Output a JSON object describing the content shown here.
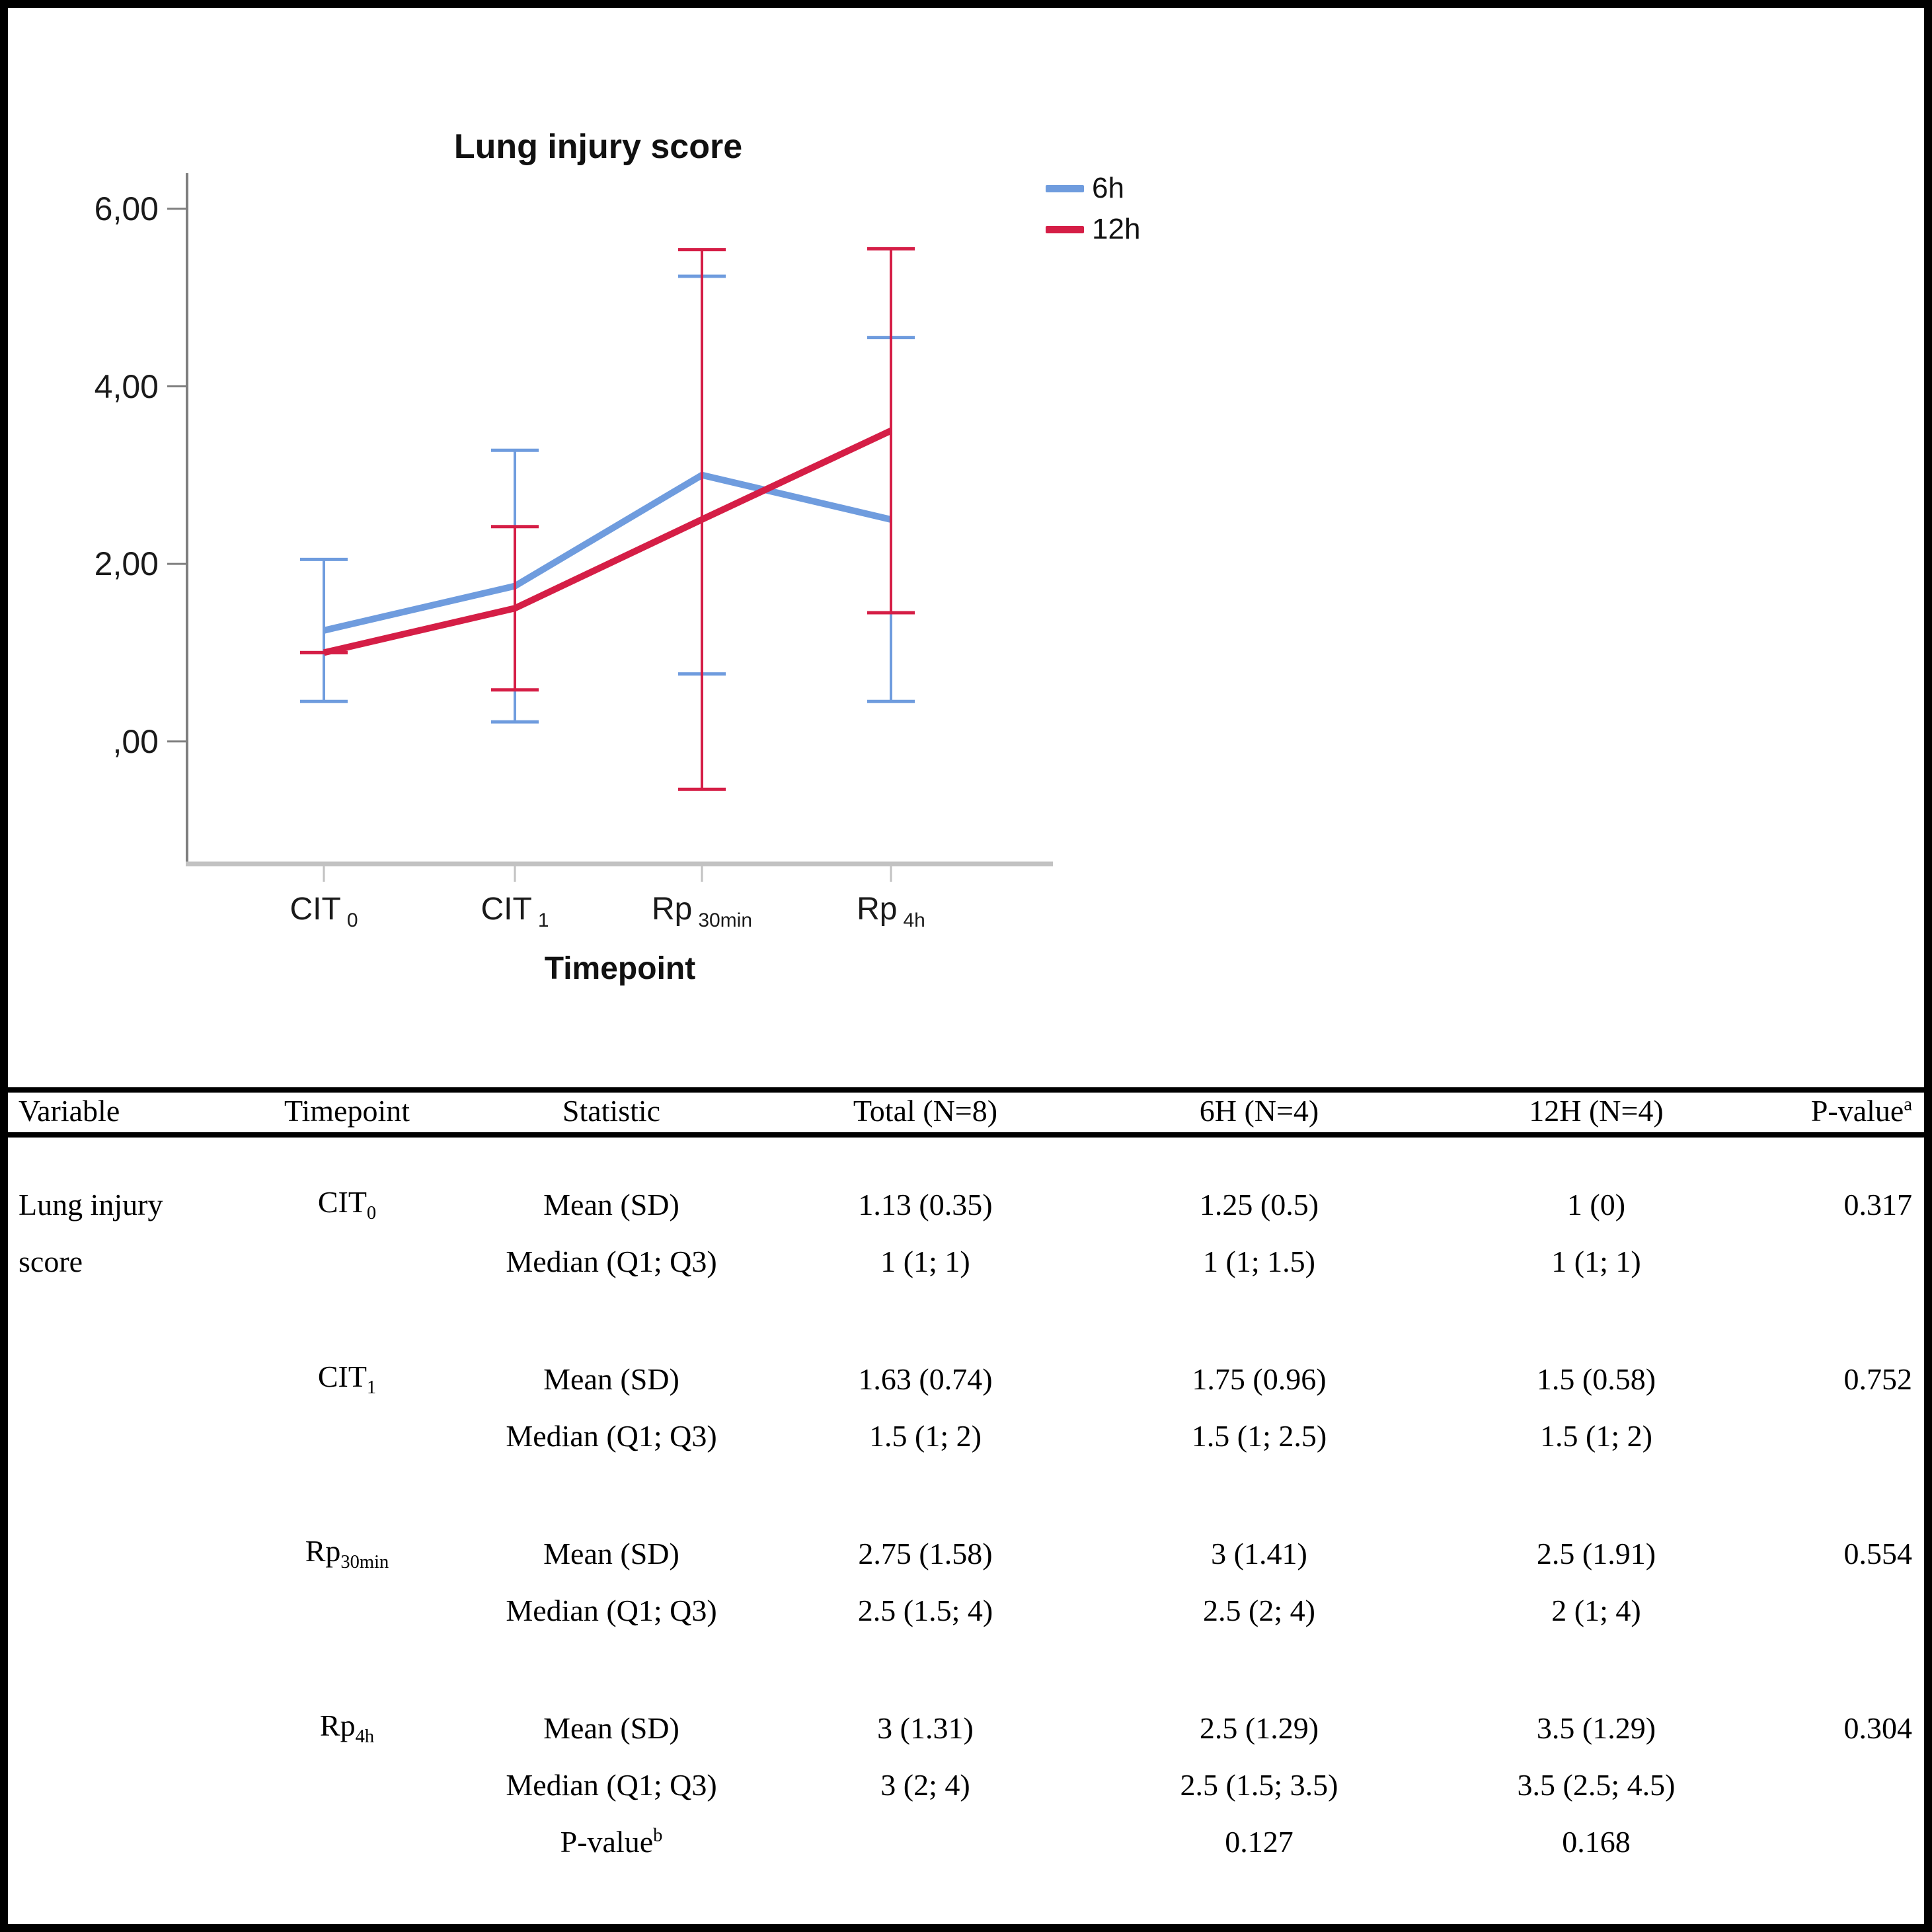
{
  "chart": {
    "type": "line",
    "title": "Lung injury score",
    "xlabel": "Timepoint",
    "categories": [
      "CIT_0",
      "CIT_1",
      "Rp_30min",
      "Rp_4h"
    ],
    "tick_labels": [
      {
        "main": "CIT",
        "sub": "0"
      },
      {
        "main": "CIT",
        "sub": "1"
      },
      {
        "main": "Rp",
        "sub": "30min"
      },
      {
        "main": "Rp",
        "sub": "4h"
      }
    ],
    "y_ticks": {
      "labels": [
        "6,00",
        "4,00",
        "2,00",
        ",00"
      ],
      "values": [
        6,
        4,
        2,
        0
      ]
    },
    "ylim": [
      -1.4,
      6.4
    ],
    "grid": "off",
    "legend_position": "top-right",
    "error_bars": "95% CI",
    "series": [
      {
        "name": "6h",
        "color": "#6F9CDE",
        "values": [
          1.25,
          1.75,
          3,
          2.5
        ],
        "ci_low": [
          0.45,
          0.22,
          0.76,
          0.45
        ],
        "ci_high": [
          2.05,
          3.28,
          5.24,
          4.55
        ]
      },
      {
        "name": "12h",
        "color": "#D51E46",
        "values": [
          1,
          1.5,
          2.5,
          3.5
        ],
        "ci_low": [
          1,
          0.58,
          -0.54,
          1.45
        ],
        "ci_high": [
          1,
          2.42,
          5.54,
          5.55
        ]
      }
    ]
  },
  "chart_data": {
    "type": "line",
    "title": "Lung injury score",
    "xlabel": "Timepoint",
    "categories": [
      "CIT_0",
      "CIT_1",
      "Rp_30min",
      "Rp_4h"
    ],
    "ylim": [
      -1.4,
      6.4
    ],
    "series": [
      {
        "name": "6h",
        "values": [
          1.25,
          1.75,
          3,
          2.5
        ],
        "ci_low": [
          0.45,
          0.22,
          0.76,
          0.45
        ],
        "ci_high": [
          2.05,
          3.28,
          5.24,
          4.55
        ]
      },
      {
        "name": "12h",
        "values": [
          1,
          1.5,
          2.5,
          3.5
        ],
        "ci_low": [
          1,
          0.58,
          -0.54,
          1.45
        ],
        "ci_high": [
          1,
          2.42,
          5.54,
          5.55
        ]
      }
    ]
  },
  "table": {
    "headers": [
      "Variable",
      "Timepoint",
      "Statistic",
      "Total (N=8)",
      "6H (N=4)",
      "12H (N=4)",
      "P-value^a^"
    ],
    "groups": [
      {
        "rows": [
          [
            "Lung injury",
            "CIT~0~",
            "Mean (SD)",
            "1.13 (0.35)",
            "1.25 (0.5)",
            "1 (0)",
            "0.317"
          ],
          [
            "score",
            "",
            "Median (Q1; Q3)",
            "1 (1; 1)",
            "1 (1; 1.5)",
            "1 (1; 1)",
            ""
          ]
        ]
      },
      {
        "rows": [
          [
            "",
            "CIT~1~",
            "Mean (SD)",
            "1.63 (0.74)",
            "1.75 (0.96)",
            "1.5 (0.58)",
            "0.752"
          ],
          [
            "",
            "",
            "Median (Q1; Q3)",
            "1.5 (1; 2)",
            "1.5 (1; 2.5)",
            "1.5 (1; 2)",
            ""
          ]
        ]
      },
      {
        "rows": [
          [
            "",
            "Rp~30min~",
            "Mean (SD)",
            "2.75 (1.58)",
            "3 (1.41)",
            "2.5 (1.91)",
            "0.554"
          ],
          [
            "",
            "",
            "Median (Q1; Q3)",
            "2.5 (1.5; 4)",
            "2.5 (2; 4)",
            "2 (1; 4)",
            ""
          ]
        ]
      },
      {
        "rows": [
          [
            "",
            "Rp~4h~",
            "Mean (SD)",
            "3 (1.31)",
            "2.5 (1.29)",
            "3.5 (1.29)",
            "0.304"
          ],
          [
            "",
            "",
            "Median (Q1; Q3)",
            "3 (2; 4)",
            "2.5 (1.5; 3.5)",
            "3.5 (2.5; 4.5)",
            ""
          ],
          [
            "",
            "",
            "P-value^b^",
            "",
            "0.127",
            "0.168",
            ""
          ]
        ]
      }
    ]
  }
}
